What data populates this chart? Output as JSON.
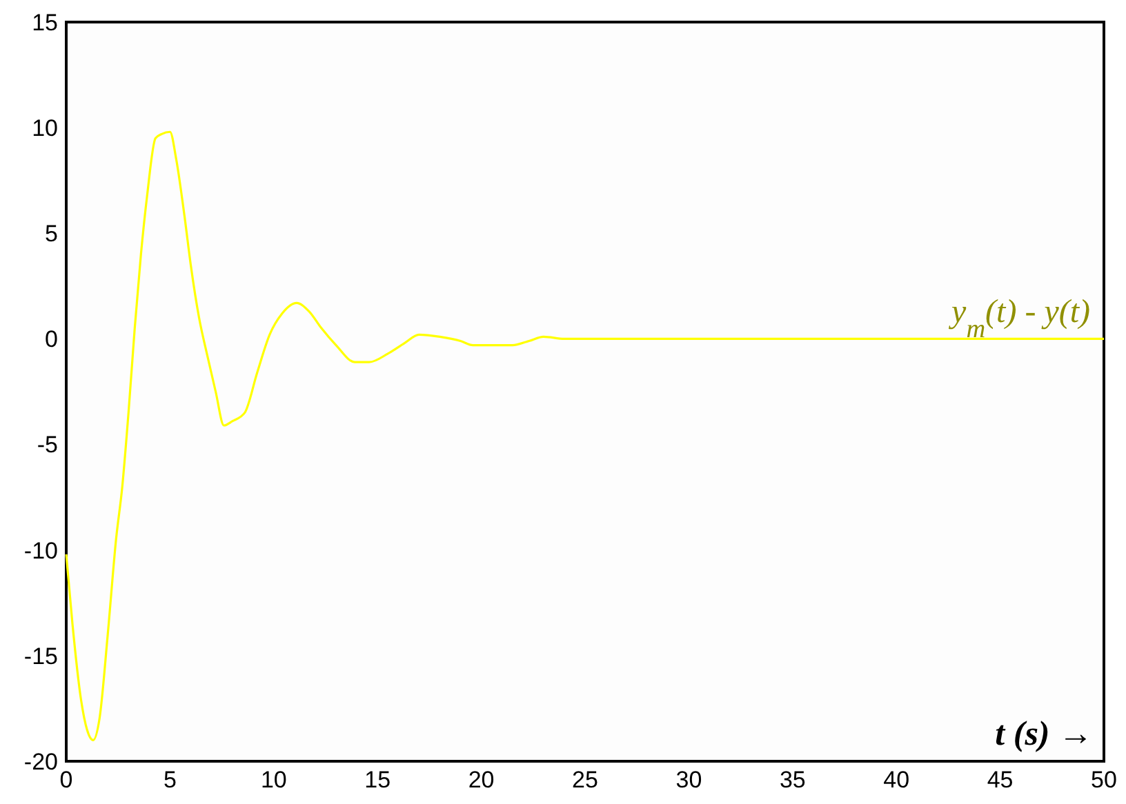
{
  "chart_data": {
    "type": "line",
    "xlabel": "t (s) →",
    "x": [
      0,
      0.3,
      0.7,
      1.0,
      1.3,
      1.6,
      2.0,
      2.4,
      2.7,
      3.0,
      3.3,
      3.6,
      3.9,
      4.3,
      4.6,
      5.0,
      5.3,
      5.7,
      6.0,
      6.4,
      6.8,
      7.2,
      7.6,
      8.0,
      8.6,
      9.2,
      9.8,
      10.4,
      11.1,
      11.7,
      12.3,
      13.0,
      13.9,
      14.6,
      15.5,
      16.3,
      17.0,
      18.0,
      19.0,
      19.6,
      20.5,
      21.5,
      22.3,
      23.0,
      24.0,
      25.0,
      30.0,
      40.0,
      50.0
    ],
    "series": [
      {
        "name": "y$_{m}$(t) - y(t)",
        "color": "#ffff00",
        "values": [
          -10.2,
          -13.5,
          -17.0,
          -18.5,
          -19.0,
          -18.0,
          -14.0,
          -9.5,
          -7.0,
          -3.5,
          0.5,
          4.0,
          6.8,
          9.5,
          9.7,
          9.8,
          8.5,
          5.8,
          3.5,
          1.0,
          -0.8,
          -2.5,
          -4.1,
          -3.9,
          -3.5,
          -1.6,
          0.2,
          1.2,
          1.7,
          1.3,
          0.5,
          -0.3,
          -1.1,
          -1.1,
          -0.7,
          -0.2,
          0.2,
          0.1,
          -0.1,
          -0.3,
          -0.3,
          -0.3,
          -0.1,
          0.1,
          0.0,
          0.0,
          0.0,
          0.0,
          0.0
        ]
      }
    ],
    "xlim": [
      0,
      50
    ],
    "xticks": [
      0,
      5,
      10,
      15,
      20,
      25,
      30,
      35,
      40,
      45,
      50
    ],
    "ylim": [
      -20,
      15
    ],
    "yticks": [
      -20,
      -15,
      -10,
      -5,
      0,
      5,
      10,
      15
    ],
    "grid": false,
    "marker": "none",
    "line_style": "solid"
  }
}
